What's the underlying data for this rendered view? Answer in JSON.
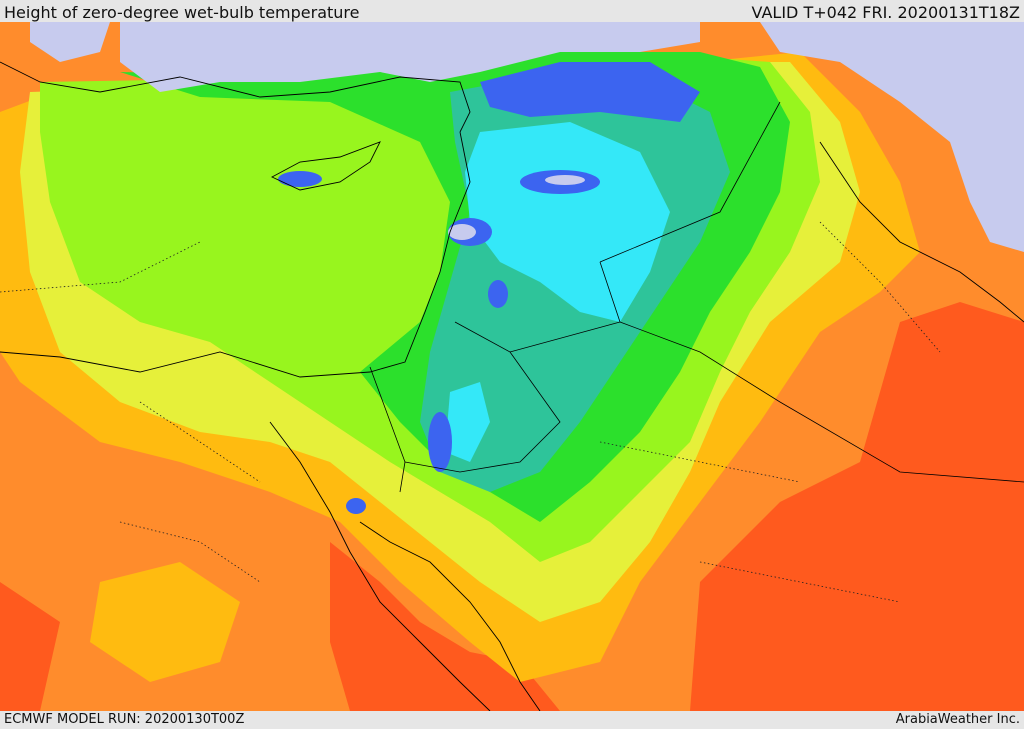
{
  "header": {
    "title": "Height of zero-degree wet-bulb temperature",
    "valid": "VALID T+042 FRI. 20200131T18Z"
  },
  "footer": {
    "model_run": "ECMWF MODEL RUN: 20200130T00Z",
    "credit": "ArabiaWeather Inc."
  },
  "map": {
    "colors": {
      "lavender": "#c7cbee",
      "blue": "#3c64f0",
      "cyan": "#34e8f8",
      "teal": "#2ec49a",
      "green": "#2ce02c",
      "light_green": "#98f51e",
      "yellow": "#e6f03a",
      "gold": "#ffbb10",
      "orange": "#ff8c2c",
      "red_orange": "#ff5a1e"
    }
  }
}
